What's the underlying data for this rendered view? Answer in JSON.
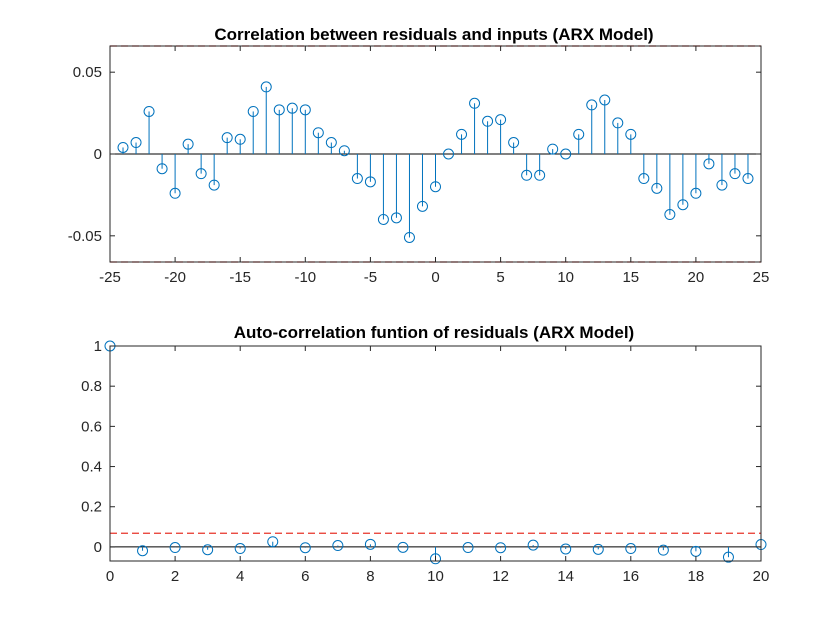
{
  "chart_data": [
    {
      "type": "stem",
      "title": "Correlation between residuals and inputs (ARX Model)",
      "xlabel": "",
      "ylabel": "",
      "xlim": [
        -25,
        25
      ],
      "ylim": [
        -0.066,
        0.066
      ],
      "xticks": [
        "-25",
        "-20",
        "-15",
        "-10",
        "-5",
        "0",
        "5",
        "10",
        "15",
        "20",
        "25"
      ],
      "yticks": [
        "-0.05",
        "0",
        "0.05"
      ],
      "confidence_bound": 0.066,
      "x": [
        -24,
        -23,
        -22,
        -21,
        -20,
        -19,
        -18,
        -17,
        -16,
        -15,
        -14,
        -13,
        -12,
        -11,
        -10,
        -9,
        -8,
        -7,
        -6,
        -5,
        -4,
        -3,
        -2,
        -1,
        0,
        1,
        2,
        3,
        4,
        5,
        6,
        7,
        8,
        9,
        10,
        11,
        12,
        13,
        14,
        15,
        16,
        17,
        18,
        19,
        20,
        21,
        22,
        23,
        24
      ],
      "values": [
        0.004,
        0.007,
        0.026,
        -0.009,
        -0.024,
        0.006,
        -0.012,
        -0.019,
        0.01,
        0.009,
        0.026,
        0.041,
        0.027,
        0.028,
        0.027,
        0.013,
        0.007,
        0.002,
        -0.015,
        -0.017,
        -0.04,
        -0.039,
        -0.051,
        -0.032,
        -0.02,
        0.0,
        0.012,
        0.031,
        0.02,
        0.021,
        0.007,
        -0.013,
        -0.013,
        0.003,
        0.0,
        0.012,
        0.03,
        0.033,
        0.019,
        0.012,
        -0.015,
        -0.021,
        -0.037,
        -0.031,
        -0.024,
        -0.006,
        -0.019,
        -0.012,
        -0.015
      ]
    },
    {
      "type": "stem",
      "title": "Auto-correlation funtion of residuals (ARX Model)",
      "xlabel": "",
      "ylabel": "",
      "xlim": [
        0,
        20
      ],
      "ylim": [
        -0.07,
        1.0
      ],
      "xticks": [
        "0",
        "2",
        "4",
        "6",
        "8",
        "10",
        "12",
        "14",
        "16",
        "18",
        "20"
      ],
      "yticks": [
        "0",
        "0.2",
        "0.4",
        "0.6",
        "0.8",
        "1"
      ],
      "confidence_bound": 0.068,
      "x": [
        0,
        1,
        2,
        3,
        4,
        5,
        6,
        7,
        8,
        9,
        10,
        11,
        12,
        13,
        14,
        15,
        16,
        17,
        18,
        19,
        20
      ],
      "values": [
        1.0,
        -0.019,
        -0.003,
        -0.014,
        -0.008,
        0.026,
        -0.004,
        0.007,
        0.013,
        -0.002,
        -0.059,
        -0.003,
        -0.004,
        0.009,
        -0.01,
        -0.012,
        -0.008,
        -0.016,
        -0.022,
        -0.051,
        0.012
      ]
    }
  ],
  "colors": {
    "stem": "#0072BD",
    "bound": "#E8342A",
    "axis": "#262626",
    "zero": "#000000"
  }
}
